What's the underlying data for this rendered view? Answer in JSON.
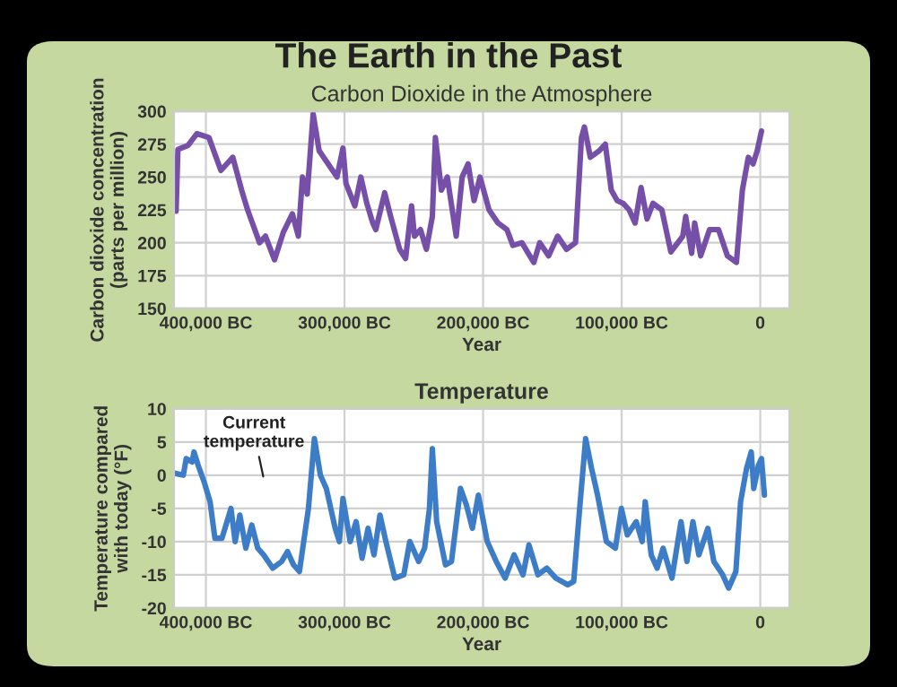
{
  "chart_data": [
    {
      "type": "line",
      "title": "The Earth in the Past",
      "subtitle": "Carbon Dioxide in the Atmosphere",
      "xlabel": "Year",
      "ylabel": "Carbon dioxide concentration\n(parts per million)",
      "xlim": [
        -423000,
        21000
      ],
      "ylim": [
        150,
        300
      ],
      "xticks": [
        {
          "value": -400000,
          "label": "400,000 BC"
        },
        {
          "value": -300000,
          "label": "300,000 BC"
        },
        {
          "value": -200000,
          "label": "200,000 BC"
        },
        {
          "value": -100000,
          "label": "100,000 BC"
        },
        0
      ],
      "yticks": [
        150,
        175,
        200,
        225,
        250,
        275,
        300
      ],
      "grid": true,
      "marker": "none",
      "line_style": "solid",
      "series": [
        {
          "color": "#7650a8",
          "x": [
            -421500,
            -420200,
            -412900,
            -406500,
            -397800,
            -389200,
            -384900,
            -380600,
            -374200,
            -369900,
            -361300,
            -357000,
            -350500,
            -344100,
            -337600,
            -333300,
            -330300,
            -326900,
            -322600,
            -318300,
            -311800,
            -305400,
            -301100,
            -298900,
            -292500,
            -288200,
            -283900,
            -279600,
            -277400,
            -271000,
            -266700,
            -260200,
            -255900,
            -251600,
            -249500,
            -245200,
            -240900,
            -236600,
            -234400,
            -230100,
            -225800,
            -219400,
            -215100,
            -210800,
            -206500,
            -202200,
            -195700,
            -189200,
            -182800,
            -178500,
            -172000,
            -163400,
            -159100,
            -152700,
            -146200,
            -139800,
            -133300,
            -129000,
            -126900,
            -122600,
            -116100,
            -111800,
            -107500,
            -103200,
            -98900,
            -94600,
            -90300,
            -86000,
            -81700,
            -77400,
            -71000,
            -64500,
            -55900,
            -53800,
            -49500,
            -47300,
            -43000,
            -36600,
            -30100,
            -23700,
            -17200,
            -12900,
            -8600,
            -5200,
            -2200,
            900
          ],
          "values": [
            224,
            271,
            274,
            283,
            280,
            255,
            260,
            265,
            240,
            225,
            200,
            205,
            187,
            208,
            222,
            205,
            250,
            237,
            298,
            270,
            260,
            250,
            272,
            245,
            228,
            250,
            230,
            215,
            210,
            238,
            220,
            195,
            188,
            228,
            205,
            210,
            195,
            220,
            280,
            240,
            250,
            205,
            250,
            260,
            232,
            250,
            225,
            215,
            210,
            198,
            200,
            185,
            200,
            190,
            205,
            195,
            200,
            280,
            288,
            265,
            270,
            275,
            240,
            232,
            230,
            225,
            215,
            242,
            218,
            230,
            225,
            193,
            205,
            220,
            192,
            215,
            190,
            210,
            210,
            190,
            185,
            240,
            265,
            260,
            270,
            285
          ]
        }
      ]
    },
    {
      "type": "line",
      "title": "Temperature",
      "xlabel": "Year",
      "ylabel": "Temperature compared\nwith today (°F)",
      "xlim": [
        -423000,
        21000
      ],
      "ylim": [
        -20,
        10
      ],
      "xticks": [
        {
          "value": -400000,
          "label": "400,000 BC"
        },
        {
          "value": -300000,
          "label": "300,000 BC"
        },
        {
          "value": -200000,
          "label": "200,000 BC"
        },
        {
          "value": -100000,
          "label": "100,000 BC"
        },
        0
      ],
      "yticks": [
        -20,
        -15,
        -10,
        -5,
        0,
        5,
        10
      ],
      "grid": true,
      "marker": "none",
      "line_style": "solid",
      "annotations": [
        "Current\ntemperature"
      ],
      "series": [
        {
          "color": "#3d7cc6",
          "x": [
            -422800,
            -416300,
            -414200,
            -409900,
            -408600,
            -405600,
            -401300,
            -397000,
            -393500,
            -388400,
            -381900,
            -378900,
            -375500,
            -371200,
            -366900,
            -362600,
            -358300,
            -351800,
            -345400,
            -341100,
            -336800,
            -332500,
            -326000,
            -321700,
            -317400,
            -313100,
            -306700,
            -303700,
            -301100,
            -295900,
            -291600,
            -287300,
            -283000,
            -278700,
            -274400,
            -270100,
            -263700,
            -257200,
            -252900,
            -246500,
            -242200,
            -238700,
            -236600,
            -233500,
            -227100,
            -222800,
            -216300,
            -212000,
            -207700,
            -203400,
            -197000,
            -190500,
            -184100,
            -177600,
            -171200,
            -166900,
            -160400,
            -154000,
            -147500,
            -138900,
            -134600,
            -130300,
            -126000,
            -121700,
            -117400,
            -111000,
            -104500,
            -100200,
            -95900,
            -89500,
            -85200,
            -83000,
            -78700,
            -74400,
            -70100,
            -63700,
            -57200,
            -52900,
            -48600,
            -44300,
            -37800,
            -33500,
            -27100,
            -22800,
            -17600,
            -14200,
            -9900,
            -6500,
            -4700,
            -1300,
            900,
            3000
          ],
          "values": [
            0.3,
            0,
            2.5,
            2,
            3.5,
            1.5,
            -1,
            -4,
            -9.5,
            -9.5,
            -5,
            -10,
            -6,
            -11,
            -7.5,
            -11,
            -12,
            -14,
            -13,
            -11.5,
            -13.5,
            -14.5,
            -5,
            5.5,
            0,
            -2,
            -8,
            -10,
            -3.5,
            -10,
            -7,
            -12.5,
            -8,
            -12,
            -6,
            -10,
            -15.5,
            -15,
            -10,
            -13,
            -11,
            -5,
            4,
            -7,
            -13.5,
            -13,
            -2,
            -4.5,
            -8,
            -3,
            -10,
            -13,
            -15.5,
            -12,
            -15,
            -10.5,
            -15,
            -14,
            -15.5,
            -16.5,
            -16,
            -5,
            5.5,
            1,
            -3,
            -10,
            -11,
            -5,
            -9,
            -7,
            -10,
            -4,
            -12,
            -14,
            -11,
            -15.5,
            -7,
            -13,
            -7,
            -12,
            -8,
            -13,
            -15,
            -17,
            -14.5,
            -4,
            1,
            3.5,
            -2,
            1.5,
            2.5,
            -3
          ]
        }
      ]
    }
  ]
}
